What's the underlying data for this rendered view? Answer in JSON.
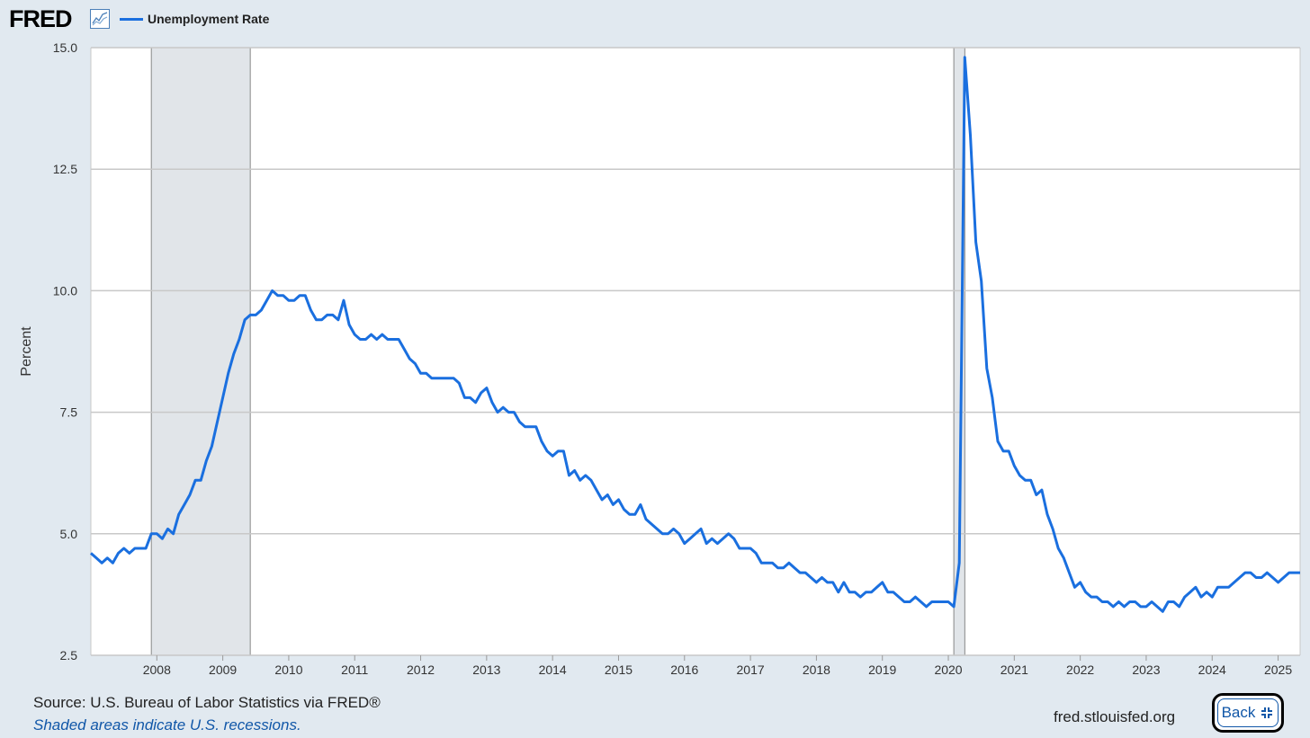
{
  "header": {
    "logo": "FRED",
    "legend_label": "Unemployment Rate"
  },
  "colors": {
    "series": "#1a6fdf",
    "recession": "#e1e5e9",
    "background": "#e1e9f0",
    "grid": "#c8c8c8"
  },
  "icons": {
    "logo_graph": "chart-line-icon",
    "collapse": "collapse-arrows-icon"
  },
  "footer": {
    "source": "Source: U.S. Bureau of Labor Statistics via FRED®",
    "note": "Shaded areas indicate U.S. recessions.",
    "url": "fred.stlouisfed.org",
    "back_label": "Back"
  },
  "chart_data": {
    "type": "line",
    "ylabel": "Percent",
    "ylim": [
      2.5,
      15.0
    ],
    "yticks": [
      "2.5",
      "5.0",
      "7.5",
      "10.0",
      "12.5",
      "15.0"
    ],
    "xlim": [
      "2007-01",
      "2025-05"
    ],
    "xticks": [
      "2008",
      "2009",
      "2010",
      "2011",
      "2012",
      "2013",
      "2014",
      "2015",
      "2016",
      "2017",
      "2018",
      "2019",
      "2020",
      "2021",
      "2022",
      "2023",
      "2024",
      "2025"
    ],
    "grid": true,
    "recessions": [
      {
        "start": "2007-12",
        "end": "2009-06"
      },
      {
        "start": "2020-02",
        "end": "2020-04"
      }
    ],
    "series": [
      {
        "name": "Unemployment Rate",
        "start": "2007-01",
        "frequency": "monthly",
        "values": [
          4.6,
          4.5,
          4.4,
          4.5,
          4.4,
          4.6,
          4.7,
          4.6,
          4.7,
          4.7,
          4.7,
          5.0,
          5.0,
          4.9,
          5.1,
          5.0,
          5.4,
          5.6,
          5.8,
          6.1,
          6.1,
          6.5,
          6.8,
          7.3,
          7.8,
          8.3,
          8.7,
          9.0,
          9.4,
          9.5,
          9.5,
          9.6,
          9.8,
          10.0,
          9.9,
          9.9,
          9.8,
          9.8,
          9.9,
          9.9,
          9.6,
          9.4,
          9.4,
          9.5,
          9.5,
          9.4,
          9.8,
          9.3,
          9.1,
          9.0,
          9.0,
          9.1,
          9.0,
          9.1,
          9.0,
          9.0,
          9.0,
          8.8,
          8.6,
          8.5,
          8.3,
          8.3,
          8.2,
          8.2,
          8.2,
          8.2,
          8.2,
          8.1,
          7.8,
          7.8,
          7.7,
          7.9,
          8.0,
          7.7,
          7.5,
          7.6,
          7.5,
          7.5,
          7.3,
          7.2,
          7.2,
          7.2,
          6.9,
          6.7,
          6.6,
          6.7,
          6.7,
          6.2,
          6.3,
          6.1,
          6.2,
          6.1,
          5.9,
          5.7,
          5.8,
          5.6,
          5.7,
          5.5,
          5.4,
          5.4,
          5.6,
          5.3,
          5.2,
          5.1,
          5.0,
          5.0,
          5.1,
          5.0,
          4.8,
          4.9,
          5.0,
          5.1,
          4.8,
          4.9,
          4.8,
          4.9,
          5.0,
          4.9,
          4.7,
          4.7,
          4.7,
          4.6,
          4.4,
          4.4,
          4.4,
          4.3,
          4.3,
          4.4,
          4.3,
          4.2,
          4.2,
          4.1,
          4.0,
          4.1,
          4.0,
          4.0,
          3.8,
          4.0,
          3.8,
          3.8,
          3.7,
          3.8,
          3.8,
          3.9,
          4.0,
          3.8,
          3.8,
          3.7,
          3.6,
          3.6,
          3.7,
          3.6,
          3.5,
          3.6,
          3.6,
          3.6,
          3.6,
          3.5,
          4.4,
          14.8,
          13.2,
          11.0,
          10.2,
          8.4,
          7.8,
          6.9,
          6.7,
          6.7,
          6.4,
          6.2,
          6.1,
          6.1,
          5.8,
          5.9,
          5.4,
          5.1,
          4.7,
          4.5,
          4.2,
          3.9,
          4.0,
          3.8,
          3.7,
          3.7,
          3.6,
          3.6,
          3.5,
          3.6,
          3.5,
          3.6,
          3.6,
          3.5,
          3.5,
          3.6,
          3.5,
          3.4,
          3.6,
          3.6,
          3.5,
          3.7,
          3.8,
          3.9,
          3.7,
          3.8,
          3.7,
          3.9,
          3.9,
          3.9,
          4.0,
          4.1,
          4.2,
          4.2,
          4.1,
          4.1,
          4.2,
          4.1,
          4.0,
          4.1,
          4.2,
          4.2,
          4.2
        ]
      }
    ]
  }
}
